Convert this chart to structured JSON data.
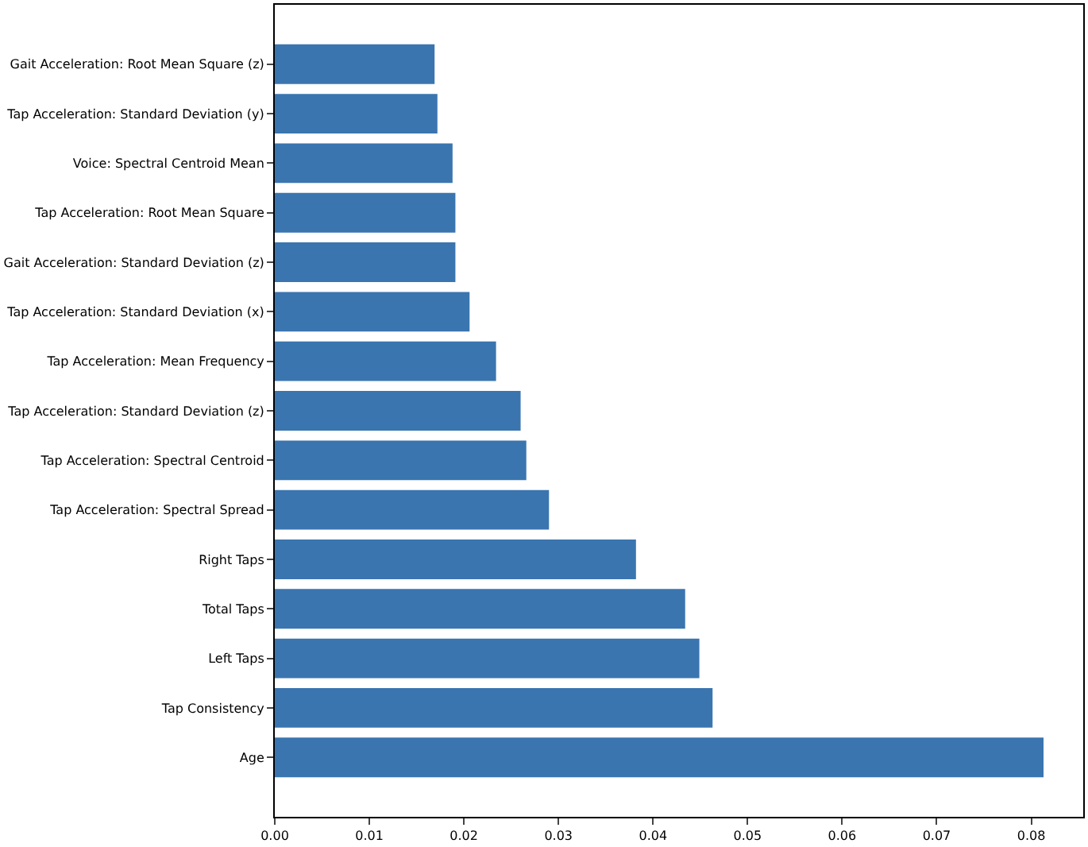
{
  "chart_data": {
    "type": "bar",
    "orientation": "horizontal",
    "categories": [
      "Gait Acceleration: Root Mean Square (z)",
      "Tap Acceleration: Standard Deviation (y)",
      "Voice: Spectral Centroid Mean",
      "Tap Acceleration: Root Mean Square",
      "Gait Acceleration: Standard Deviation (z)",
      "Tap Acceleration: Standard Deviation (x)",
      "Tap Acceleration: Mean Frequency",
      "Tap Acceleration: Standard Deviation (z)",
      "Tap Acceleration: Spectral Centroid",
      "Tap Acceleration: Spectral Spread",
      "Right Taps",
      "Total Taps",
      "Left Taps",
      "Tap Consistency",
      "Age"
    ],
    "values": [
      0.0169,
      0.0172,
      0.0188,
      0.0191,
      0.0191,
      0.0206,
      0.0234,
      0.026,
      0.0266,
      0.029,
      0.0382,
      0.0434,
      0.0449,
      0.0463,
      0.0813
    ],
    "color": "#3a75af",
    "xlim": [
      0,
      0.0855
    ],
    "xticks": [
      {
        "value": 0,
        "label": "0.00"
      },
      {
        "value": 0.01,
        "label": "0.01"
      },
      {
        "value": 0.02,
        "label": "0.02"
      },
      {
        "value": 0.03,
        "label": "0.03"
      },
      {
        "value": 0.04,
        "label": "0.04"
      },
      {
        "value": 0.05,
        "label": "0.05"
      },
      {
        "value": 0.06,
        "label": "0.06"
      },
      {
        "value": 0.07,
        "label": "0.07"
      },
      {
        "value": 0.08,
        "label": "0.08"
      }
    ]
  }
}
